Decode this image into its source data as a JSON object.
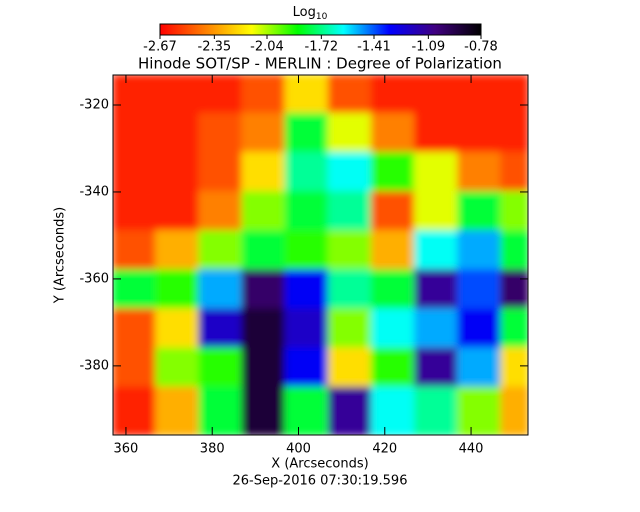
{
  "chart_data": {
    "type": "heatmap",
    "title": "Hinode SOT/SP - MERLIN : Degree of Polarization",
    "x_label": "X (Arcseconds)",
    "y_label": "Y (Arcseconds)",
    "footer": "26-Sep-2016 07:30:19.596",
    "colorbar_label": {
      "base": "Log",
      "subscript": "10"
    },
    "colorbar_lim": [
      -2.67,
      -0.78
    ],
    "colorbar_ticks": [
      -2.67,
      -2.35,
      -2.04,
      -1.72,
      -1.41,
      -1.09,
      -0.78
    ],
    "colormap": [
      "#ff0000",
      "#ff8000",
      "#ffff00",
      "#00ff00",
      "#00ffff",
      "#0000ff",
      "#400080",
      "#000000"
    ],
    "xlim": [
      357,
      453.2
    ],
    "ylim": [
      -395.9,
      -313.1
    ],
    "xticks": [
      360,
      380,
      400,
      420,
      440
    ],
    "yticks": [
      -320,
      -340,
      -360,
      -380
    ],
    "x_edges": [
      357,
      367,
      377,
      387,
      397,
      407,
      417,
      427,
      437,
      447,
      453.2
    ],
    "y_edges": [
      -313.1,
      -322,
      -331,
      -340,
      -349,
      -358,
      -367,
      -376,
      -385,
      -395.9
    ],
    "z": [
      [
        -2.6,
        -2.6,
        -2.6,
        -2.5,
        -2.2,
        -2.5,
        -2.6,
        -2.6,
        -2.6,
        -2.6
      ],
      [
        -2.6,
        -2.6,
        -2.5,
        -2.4,
        -1.8,
        -2.1,
        -2.4,
        -2.6,
        -2.6,
        -2.6
      ],
      [
        -2.6,
        -2.6,
        -2.5,
        -2.2,
        -1.7,
        -1.6,
        -1.9,
        -2.1,
        -2.4,
        -2.5
      ],
      [
        -2.6,
        -2.6,
        -2.4,
        -2.0,
        -1.8,
        -1.7,
        -2.5,
        -2.1,
        -1.8,
        -2.0
      ],
      [
        -2.5,
        -2.3,
        -2.0,
        -1.8,
        -1.9,
        -2.0,
        -2.3,
        -1.6,
        -1.5,
        -1.8
      ],
      [
        -1.8,
        -1.9,
        -1.5,
        -1.0,
        -1.3,
        -1.7,
        -1.8,
        -1.1,
        -1.4,
        -1.0
      ],
      [
        -2.5,
        -2.2,
        -1.2,
        -0.9,
        -1.2,
        -2.0,
        -1.6,
        -1.5,
        -1.3,
        -1.8
      ],
      [
        -2.5,
        -2.0,
        -1.9,
        -0.9,
        -1.3,
        -2.2,
        -1.9,
        -1.1,
        -1.5,
        -2.2
      ],
      [
        -2.6,
        -2.3,
        -1.8,
        -0.9,
        -1.8,
        -1.1,
        -1.6,
        -1.7,
        -2.0,
        -2.3
      ]
    ]
  }
}
